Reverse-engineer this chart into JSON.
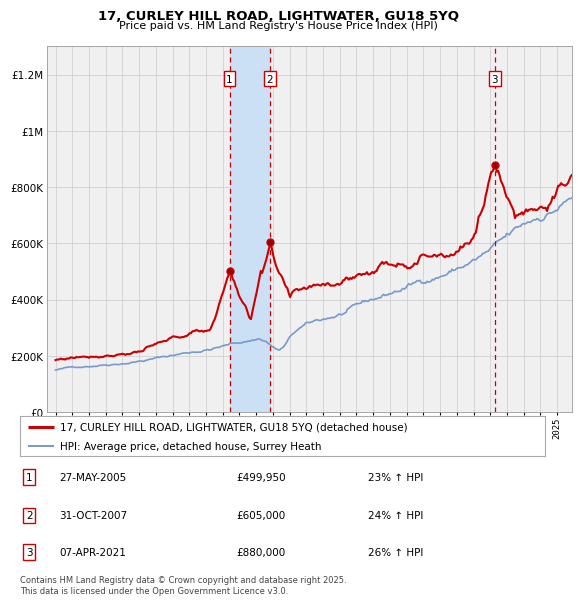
{
  "title": "17, CURLEY HILL ROAD, LIGHTWATER, GU18 5YQ",
  "subtitle": "Price paid vs. HM Land Registry's House Price Index (HPI)",
  "red_label": "17, CURLEY HILL ROAD, LIGHTWATER, GU18 5YQ (detached house)",
  "blue_label": "HPI: Average price, detached house, Surrey Heath",
  "footer": "Contains HM Land Registry data © Crown copyright and database right 2025.\nThis data is licensed under the Open Government Licence v3.0.",
  "transactions": [
    {
      "num": 1,
      "date": "27-MAY-2005",
      "price": "£499,950",
      "hpi": "23% ↑ HPI",
      "x_year": 2005.41
    },
    {
      "num": 2,
      "date": "31-OCT-2007",
      "price": "£605,000",
      "hpi": "24% ↑ HPI",
      "x_year": 2007.83
    },
    {
      "num": 3,
      "date": "07-APR-2021",
      "price": "£880,000",
      "hpi": "26% ↑ HPI",
      "x_year": 2021.27
    }
  ],
  "shade_regions": [
    [
      2005.41,
      2007.83
    ]
  ],
  "ylim": [
    0,
    1300000
  ],
  "xlim_start": 1994.5,
  "xlim_end": 2025.9,
  "yticks": [
    0,
    200000,
    400000,
    600000,
    800000,
    1000000,
    1200000
  ],
  "ytick_labels": [
    "£0",
    "£200K",
    "£400K",
    "£600K",
    "£800K",
    "£1M",
    "£1.2M"
  ],
  "background_color": "#f0f0f0",
  "grid_color": "#d0d0d0",
  "red_color": "#cc0000",
  "blue_color": "#7799cc",
  "shade_color": "#cce0f5",
  "sale_points": [
    [
      2005.41,
      499950
    ],
    [
      2007.83,
      605000
    ],
    [
      2021.27,
      880000
    ]
  ]
}
